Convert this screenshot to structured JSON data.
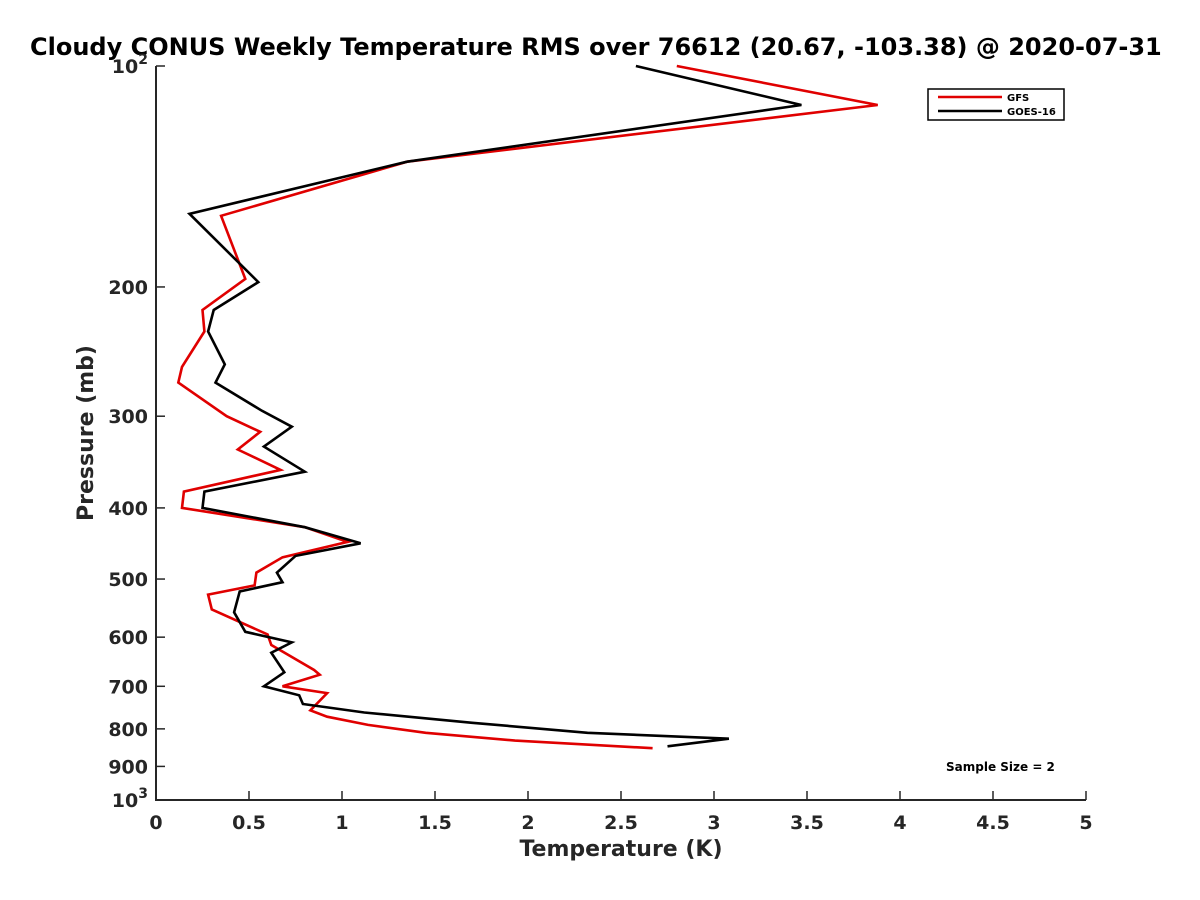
{
  "chart_data": {
    "type": "line",
    "title": "Cloudy CONUS Weekly Temperature RMS over 76612 (20.67, -103.38) @ 2020-07-31",
    "xlabel": "Temperature (K)",
    "ylabel": "Pressure (mb)",
    "xlim": [
      0,
      5
    ],
    "ylim": [
      1000,
      100
    ],
    "y_scale": "log",
    "y_reversed": true,
    "xticks": [
      0,
      0.5,
      1,
      1.5,
      2,
      2.5,
      3,
      3.5,
      4,
      4.5,
      5
    ],
    "xtick_labels": [
      "0",
      "0.5",
      "1",
      "1.5",
      "2",
      "2.5",
      "3",
      "3.5",
      "4",
      "4.5",
      "5"
    ],
    "yticks": [
      100,
      200,
      300,
      400,
      500,
      600,
      700,
      800,
      900,
      1000
    ],
    "ytick_labels": [
      {
        "base": "10",
        "exp": "2"
      },
      {
        "base": "200",
        "exp": ""
      },
      {
        "base": "300",
        "exp": ""
      },
      {
        "base": "400",
        "exp": ""
      },
      {
        "base": "500",
        "exp": ""
      },
      {
        "base": "600",
        "exp": ""
      },
      {
        "base": "700",
        "exp": ""
      },
      {
        "base": "800",
        "exp": ""
      },
      {
        "base": "900",
        "exp": ""
      },
      {
        "base": "10",
        "exp": "3"
      }
    ],
    "grid": false,
    "legend_position": "top-right",
    "series": [
      {
        "name": "GFS",
        "color": "#e00000",
        "x": [
          2.8,
          3.88,
          1.35,
          0.35,
          0.48,
          0.25,
          0.26,
          0.14,
          0.12,
          0.38,
          0.56,
          0.44,
          0.67,
          0.15,
          0.14,
          0.8,
          1.03,
          0.68,
          0.54,
          0.53,
          0.28,
          0.3,
          0.6,
          0.62,
          0.85,
          0.88,
          0.68,
          0.92,
          0.83,
          0.92,
          1.14,
          1.45,
          1.93,
          2.67
        ],
        "y": [
          100,
          113,
          135,
          160,
          195,
          215,
          230,
          257,
          270,
          300,
          315,
          333,
          355,
          380,
          400,
          425,
          445,
          467,
          490,
          510,
          525,
          550,
          595,
          615,
          665,
          675,
          700,
          715,
          755,
          770,
          790,
          810,
          830,
          850
        ]
      },
      {
        "name": "GOES-16",
        "color": "#000000",
        "x": [
          2.58,
          3.47,
          1.35,
          0.18,
          0.55,
          0.31,
          0.28,
          0.37,
          0.32,
          0.57,
          0.73,
          0.58,
          0.8,
          0.26,
          0.25,
          0.8,
          1.1,
          0.75,
          0.65,
          0.68,
          0.45,
          0.42,
          0.48,
          0.73,
          0.62,
          0.69,
          0.58,
          0.77,
          0.79,
          1.12,
          1.7,
          2.32,
          3.08,
          2.75
        ],
        "y": [
          100,
          113,
          135,
          159,
          197,
          215,
          230,
          255,
          270,
          295,
          310,
          330,
          357,
          380,
          400,
          425,
          447,
          465,
          490,
          505,
          520,
          555,
          590,
          610,
          630,
          670,
          700,
          720,
          740,
          760,
          785,
          810,
          825,
          845
        ]
      }
    ],
    "annotation": "Sample Size = 2"
  }
}
